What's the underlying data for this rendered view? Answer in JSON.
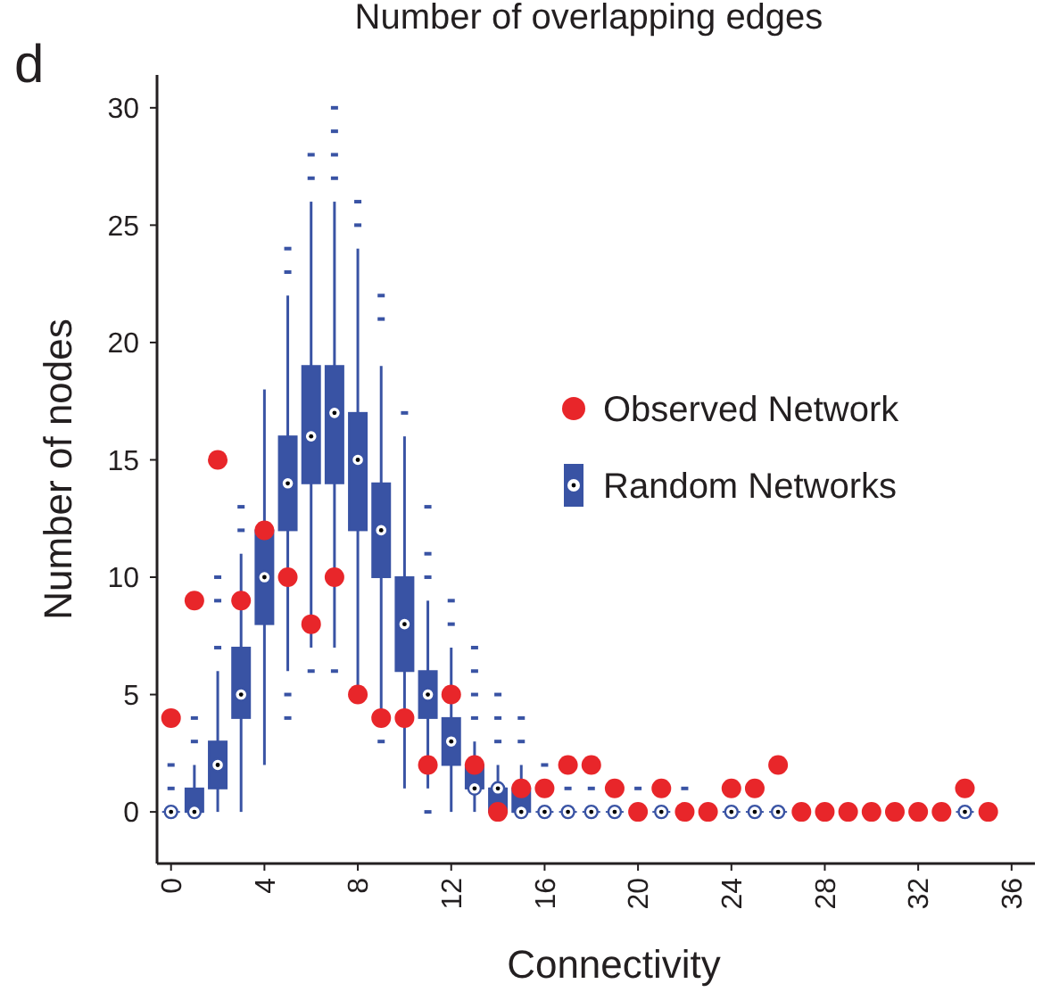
{
  "chart_data": {
    "type": "box",
    "title": "Number of overlapping edges",
    "xlabel": "Connectivity",
    "ylabel": "Number of nodes",
    "annotations": [
      "d"
    ],
    "categories": [
      "0",
      null,
      null,
      null,
      "4",
      null,
      null,
      null,
      "8",
      null,
      null,
      null,
      "12",
      null,
      null,
      null,
      "16",
      null,
      null,
      null,
      "20",
      null,
      null,
      null,
      "24",
      null,
      null,
      null,
      "28",
      null,
      null,
      null,
      "32",
      null,
      null,
      null,
      "36"
    ],
    "ylim": [
      -2.2,
      31.4
    ],
    "yticks": [
      0,
      5,
      10,
      15,
      20,
      25,
      30
    ],
    "grid": false,
    "legend": "right",
    "series": [
      {
        "name": "Observed Network",
        "type": "scatter",
        "color": "#e8262a",
        "marker": "circle",
        "values": [
          4,
          9,
          15,
          9,
          12,
          10,
          8,
          10,
          5,
          4,
          4,
          2,
          5,
          2,
          0,
          1,
          1,
          2,
          2,
          1,
          0,
          1,
          0,
          0,
          1,
          1,
          2,
          0,
          0,
          0,
          0,
          0,
          0,
          0,
          1,
          0,
          null
        ]
      },
      {
        "name": "Random Networks",
        "type": "box",
        "color": "#3953a4",
        "boxes": [
          {
            "low": 0,
            "q1": 0,
            "median": 0,
            "q3": 0,
            "high": 0,
            "outliers": [
              1,
              2
            ]
          },
          {
            "low": 0,
            "q1": 0,
            "median": 0,
            "q3": 1,
            "high": 2,
            "outliers": [
              3,
              4
            ]
          },
          {
            "low": 0,
            "q1": 1,
            "median": 2,
            "q3": 3,
            "high": 6,
            "outliers": [
              7,
              9,
              10
            ]
          },
          {
            "low": 0,
            "q1": 4,
            "median": 5,
            "q3": 7,
            "high": 11,
            "outliers": [
              12,
              13
            ]
          },
          {
            "low": 2,
            "q1": 8,
            "median": 10,
            "q3": 12,
            "high": 18
          },
          {
            "low": 6,
            "q1": 12,
            "median": 14,
            "q3": 16,
            "high": 22,
            "outliers": [
              4,
              5,
              23,
              24
            ]
          },
          {
            "low": 7,
            "q1": 14,
            "median": 16,
            "q3": 19,
            "high": 26,
            "outliers": [
              6,
              27,
              28
            ]
          },
          {
            "low": 7,
            "q1": 14,
            "median": 17,
            "q3": 19,
            "high": 26,
            "outliers": [
              6,
              27,
              28,
              29,
              30
            ]
          },
          {
            "low": 5,
            "q1": 12,
            "median": 15,
            "q3": 17,
            "high": 24,
            "outliers": [
              25,
              26
            ]
          },
          {
            "low": 4,
            "q1": 10,
            "median": 12,
            "q3": 14,
            "high": 19,
            "outliers": [
              3,
              21,
              22
            ]
          },
          {
            "low": 1,
            "q1": 6,
            "median": 8,
            "q3": 10,
            "high": 16,
            "outliers": [
              17
            ]
          },
          {
            "low": 1,
            "q1": 4,
            "median": 5,
            "q3": 6,
            "high": 9,
            "outliers": [
              0,
              10,
              11,
              13
            ]
          },
          {
            "low": 0,
            "q1": 2,
            "median": 3,
            "q3": 4,
            "high": 7,
            "outliers": [
              8,
              9
            ]
          },
          {
            "low": 0,
            "q1": 1,
            "median": 1,
            "q3": 2,
            "high": 3,
            "outliers": [
              4,
              5,
              6,
              7
            ]
          },
          {
            "low": 0,
            "q1": 0,
            "median": 1,
            "q3": 1,
            "high": 2,
            "outliers": [
              3,
              4,
              5
            ]
          },
          {
            "low": 0,
            "q1": 0,
            "median": 0,
            "q3": 1,
            "high": 2,
            "outliers": [
              3,
              4
            ]
          },
          {
            "low": 0,
            "q1": 0,
            "median": 0,
            "q3": 0,
            "high": 0,
            "outliers": [
              2
            ]
          },
          {
            "low": 0,
            "q1": 0,
            "median": 0,
            "q3": 0,
            "high": 0,
            "outliers": [
              1
            ]
          },
          {
            "low": 0,
            "q1": 0,
            "median": 0,
            "q3": 0,
            "high": 0,
            "outliers": [
              1
            ]
          },
          {
            "low": 0,
            "q1": 0,
            "median": 0,
            "q3": 0,
            "high": 0
          },
          {
            "low": 0,
            "q1": 0,
            "median": 0,
            "q3": 0,
            "high": 0,
            "outliers": [
              1
            ]
          },
          {
            "low": 0,
            "q1": 0,
            "median": 0,
            "q3": 0,
            "high": 0
          },
          {
            "low": 0,
            "q1": 0,
            "median": 0,
            "q3": 0,
            "high": 0,
            "outliers": [
              1
            ]
          },
          null,
          {
            "low": 0,
            "q1": 0,
            "median": 0,
            "q3": 0,
            "high": 0
          },
          {
            "low": 0,
            "q1": 0,
            "median": 0,
            "q3": 0,
            "high": 0
          },
          {
            "low": 0,
            "q1": 0,
            "median": 0,
            "q3": 0,
            "high": 0
          },
          null,
          null,
          null,
          null,
          null,
          null,
          null,
          {
            "low": 0,
            "q1": 0,
            "median": 0,
            "q3": 0,
            "high": 0
          },
          null,
          null
        ]
      }
    ]
  }
}
